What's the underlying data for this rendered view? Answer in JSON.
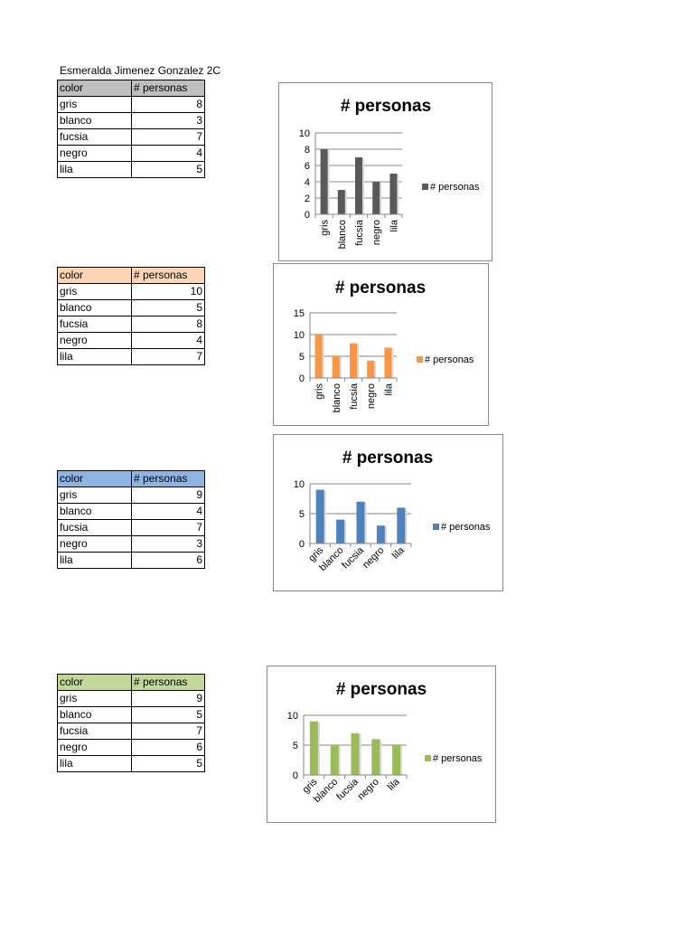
{
  "author": "Esmeralda Jimenez Gonzalez 2C",
  "colors": {
    "header": [
      "#bfbfbf",
      "#fcd5b4",
      "#8db4e2",
      "#c4d79b"
    ],
    "bars": [
      "#595959",
      "#f79646",
      "#4f81bd",
      "#9bbb59"
    ]
  },
  "tables": [
    {
      "headers": [
        "color",
        "# personas"
      ],
      "rows": [
        [
          "gris",
          "8"
        ],
        [
          "blanco",
          "3"
        ],
        [
          "fucsia",
          "7"
        ],
        [
          "negro",
          "4"
        ],
        [
          "lila",
          "5"
        ]
      ]
    },
    {
      "headers": [
        "color",
        "# personas"
      ],
      "rows": [
        [
          "gris",
          "10"
        ],
        [
          "blanco",
          "5"
        ],
        [
          "fucsia",
          "8"
        ],
        [
          "negro",
          "4"
        ],
        [
          "lila",
          "7"
        ]
      ]
    },
    {
      "headers": [
        "color",
        "# personas"
      ],
      "rows": [
        [
          "gris",
          "9"
        ],
        [
          "blanco",
          "4"
        ],
        [
          "fucsia",
          "7"
        ],
        [
          "negro",
          "3"
        ],
        [
          "lila",
          "6"
        ]
      ]
    },
    {
      "headers": [
        "color",
        "# personas"
      ],
      "rows": [
        [
          "gris",
          "9"
        ],
        [
          "blanco",
          "5"
        ],
        [
          "fucsia",
          "7"
        ],
        [
          "negro",
          "6"
        ],
        [
          "lila",
          "5"
        ]
      ]
    }
  ],
  "chart_data": [
    {
      "type": "bar",
      "title": "# personas",
      "categories": [
        "gris",
        "blanco",
        "fucsia",
        "negro",
        "lila"
      ],
      "series": [
        {
          "name": "# personas",
          "values": [
            8,
            3,
            7,
            4,
            5
          ]
        }
      ],
      "ylim": [
        0,
        10
      ],
      "yticks": [
        0,
        2,
        4,
        6,
        8,
        10
      ],
      "xlabel_rotation": "vertical",
      "legend": "right",
      "grid": true
    },
    {
      "type": "bar",
      "title": "# personas",
      "categories": [
        "gris",
        "blanco",
        "fucsia",
        "negro",
        "lila"
      ],
      "series": [
        {
          "name": "# personas",
          "values": [
            10,
            5,
            8,
            4,
            7
          ]
        }
      ],
      "ylim": [
        0,
        15
      ],
      "yticks": [
        0,
        5,
        10,
        15
      ],
      "xlabel_rotation": "vertical",
      "legend": "right",
      "grid": true
    },
    {
      "type": "bar",
      "title": "# personas",
      "categories": [
        "gris",
        "blanco",
        "fucsia",
        "negro",
        "lila"
      ],
      "series": [
        {
          "name": "# personas",
          "values": [
            9,
            4,
            7,
            3,
            6
          ]
        }
      ],
      "ylim": [
        0,
        10
      ],
      "yticks": [
        0,
        5,
        10
      ],
      "xlabel_rotation": "diagonal",
      "legend": "right",
      "grid": true
    },
    {
      "type": "bar",
      "title": "# personas",
      "categories": [
        "gris",
        "blanco",
        "fucsia",
        "negro",
        "lila"
      ],
      "series": [
        {
          "name": "# personas",
          "values": [
            9,
            5,
            7,
            6,
            5
          ]
        }
      ],
      "ylim": [
        0,
        10
      ],
      "yticks": [
        0,
        5,
        10
      ],
      "xlabel_rotation": "diagonal",
      "legend": "right",
      "grid": true
    }
  ]
}
